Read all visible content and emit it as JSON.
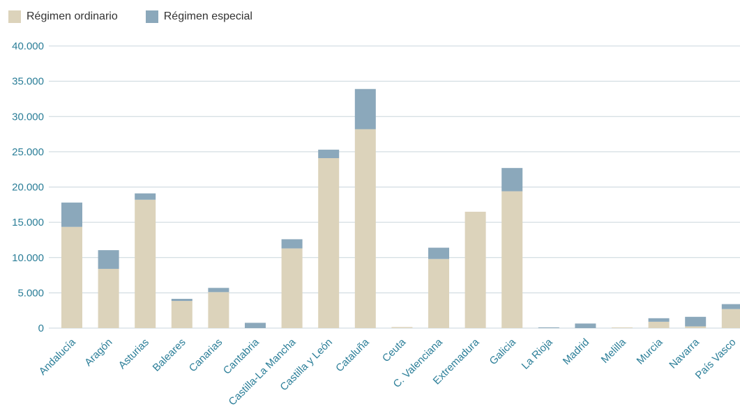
{
  "colors": {
    "ordinario": "#dcd3bb",
    "especial": "#8ba8bb",
    "axis_text": "#2b7e98",
    "grid": "#c9d5dc"
  },
  "legend": {
    "items": [
      {
        "label": "Régimen ordinario",
        "color": "#dcd3bb"
      },
      {
        "label": "Régimen especial",
        "color": "#8ba8bb"
      }
    ]
  },
  "chart_data": {
    "type": "bar",
    "stacked": true,
    "categories": [
      "Andalucía",
      "Aragón",
      "Asturias",
      "Baleares",
      "Canarias",
      "Cantabria",
      "Castilla-La Mancha",
      "Castilla y León",
      "Cataluña",
      "Ceuta",
      "C. Valenciana",
      "Extremadura",
      "Galicia",
      "La Rioja",
      "Madrid",
      "Melilla",
      "Murcia",
      "Navarra",
      "País Vasco"
    ],
    "series": [
      {
        "name": "Régimen ordinario",
        "color": "#dcd3bb",
        "values": [
          14350,
          8400,
          18200,
          3850,
          5100,
          0,
          11300,
          24100,
          28200,
          150,
          9800,
          16500,
          19400,
          0,
          0,
          100,
          900,
          250,
          2700
        ]
      },
      {
        "name": "Régimen especial",
        "color": "#8ba8bb",
        "values": [
          3450,
          2650,
          900,
          300,
          600,
          750,
          1300,
          1200,
          5700,
          0,
          1600,
          0,
          3300,
          100,
          650,
          0,
          500,
          1350,
          700
        ]
      }
    ],
    "yticks": [
      "0",
      "5.000",
      "10.000",
      "15.000",
      "20.000",
      "25.000",
      "30.000",
      "35.000",
      "40.000"
    ],
    "ylim": [
      0,
      40000
    ],
    "grid": true,
    "legend_position": "top-left"
  }
}
